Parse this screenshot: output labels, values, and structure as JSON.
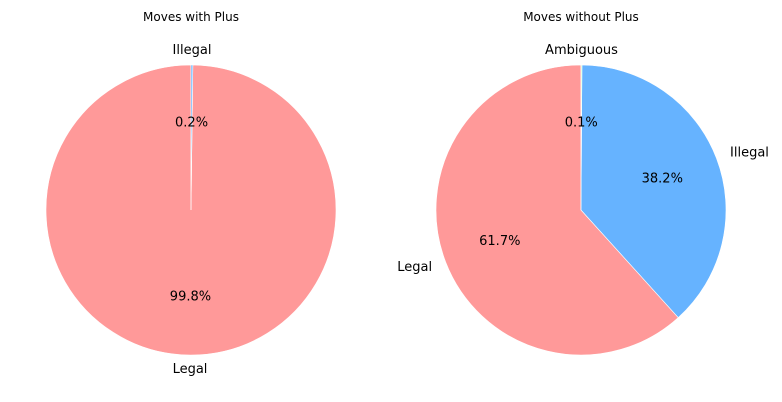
{
  "chart_data": [
    {
      "type": "pie",
      "title": "Moves with Plus",
      "categories": [
        "Legal",
        "Illegal"
      ],
      "values": [
        99.8,
        0.2
      ],
      "percent_labels": [
        "99.8%",
        "0.2%"
      ],
      "colors": [
        "#ff9999",
        "#66b3ff"
      ],
      "start_angle_deg": 90,
      "direction": "counterclockwise"
    },
    {
      "type": "pie",
      "title": "Moves without Plus",
      "categories": [
        "Legal",
        "Illegal",
        "Ambiguous"
      ],
      "values": [
        61.7,
        38.2,
        0.1
      ],
      "percent_labels": [
        "61.7%",
        "38.2%",
        "0.1%"
      ],
      "colors": [
        "#ff9999",
        "#66b3ff",
        "#99ff99"
      ],
      "start_angle_deg": 90,
      "direction": "counterclockwise"
    }
  ]
}
